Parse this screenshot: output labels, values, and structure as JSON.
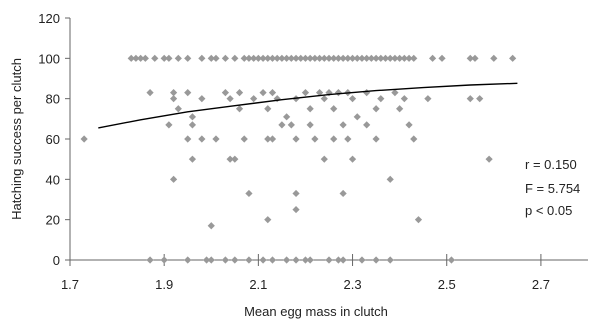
{
  "chart_data": {
    "type": "scatter",
    "xlabel": "Mean egg mass in clutch",
    "ylabel": "Hatching success per clutch",
    "xlim": [
      1.7,
      2.8
    ],
    "ylim": [
      0,
      120
    ],
    "xticks": [
      "1.7",
      "1.9",
      "2.1",
      "2.3",
      "2.5",
      "2.7"
    ],
    "yticks": [
      "0",
      "20",
      "40",
      "60",
      "80",
      "100",
      "120"
    ],
    "grid": false,
    "marker_color": "#999999",
    "trend_color": "#000000",
    "annotations": [
      "r = 0.150",
      "F = 5.754",
      "p < 0.05"
    ],
    "trendline": {
      "x": [
        1.76,
        1.85,
        1.95,
        2.05,
        2.15,
        2.25,
        2.35,
        2.45,
        2.55,
        2.65
      ],
      "y": [
        65.5,
        69.5,
        73.5,
        76.5,
        79.5,
        82,
        84,
        85.5,
        86.8,
        87.6
      ]
    },
    "points": [
      [
        1.73,
        60
      ],
      [
        1.83,
        100
      ],
      [
        1.84,
        100
      ],
      [
        1.85,
        100
      ],
      [
        1.86,
        100
      ],
      [
        1.88,
        100
      ],
      [
        1.9,
        100
      ],
      [
        1.91,
        100
      ],
      [
        1.93,
        100
      ],
      [
        1.95,
        100
      ],
      [
        1.98,
        100
      ],
      [
        2.0,
        100
      ],
      [
        2.01,
        100
      ],
      [
        2.03,
        100
      ],
      [
        2.05,
        100
      ],
      [
        2.07,
        100
      ],
      [
        2.08,
        100
      ],
      [
        2.09,
        100
      ],
      [
        2.1,
        100
      ],
      [
        2.11,
        100
      ],
      [
        2.12,
        100
      ],
      [
        2.13,
        100
      ],
      [
        2.14,
        100
      ],
      [
        2.15,
        100
      ],
      [
        2.16,
        100
      ],
      [
        2.17,
        100
      ],
      [
        2.18,
        100
      ],
      [
        2.19,
        100
      ],
      [
        2.2,
        100
      ],
      [
        2.21,
        100
      ],
      [
        2.22,
        100
      ],
      [
        2.23,
        100
      ],
      [
        2.24,
        100
      ],
      [
        2.25,
        100
      ],
      [
        2.26,
        100
      ],
      [
        2.27,
        100
      ],
      [
        2.28,
        100
      ],
      [
        2.29,
        100
      ],
      [
        2.3,
        100
      ],
      [
        2.31,
        100
      ],
      [
        2.32,
        100
      ],
      [
        2.33,
        100
      ],
      [
        2.34,
        100
      ],
      [
        2.35,
        100
      ],
      [
        2.36,
        100
      ],
      [
        2.37,
        100
      ],
      [
        2.38,
        100
      ],
      [
        2.39,
        100
      ],
      [
        2.4,
        100
      ],
      [
        2.41,
        100
      ],
      [
        2.42,
        100
      ],
      [
        2.43,
        100
      ],
      [
        2.47,
        100
      ],
      [
        2.49,
        100
      ],
      [
        2.55,
        100
      ],
      [
        2.56,
        100
      ],
      [
        2.6,
        100
      ],
      [
        2.64,
        100
      ],
      [
        1.87,
        83
      ],
      [
        1.92,
        83
      ],
      [
        1.95,
        83
      ],
      [
        2.03,
        83
      ],
      [
        2.06,
        83
      ],
      [
        2.11,
        83
      ],
      [
        2.13,
        83
      ],
      [
        2.2,
        83
      ],
      [
        2.23,
        83
      ],
      [
        2.25,
        83
      ],
      [
        2.27,
        83
      ],
      [
        2.29,
        83
      ],
      [
        2.33,
        83
      ],
      [
        2.39,
        83
      ],
      [
        1.92,
        80
      ],
      [
        1.98,
        80
      ],
      [
        2.04,
        80
      ],
      [
        2.09,
        80
      ],
      [
        2.14,
        80
      ],
      [
        2.18,
        80
      ],
      [
        2.24,
        80
      ],
      [
        2.3,
        80
      ],
      [
        2.36,
        80
      ],
      [
        2.41,
        80
      ],
      [
        2.46,
        80
      ],
      [
        2.55,
        80
      ],
      [
        2.57,
        80
      ],
      [
        1.93,
        75
      ],
      [
        2.06,
        75
      ],
      [
        2.12,
        75
      ],
      [
        2.21,
        75
      ],
      [
        2.26,
        75
      ],
      [
        2.35,
        75
      ],
      [
        2.4,
        75
      ],
      [
        1.96,
        71
      ],
      [
        2.16,
        71
      ],
      [
        2.31,
        71
      ],
      [
        1.91,
        67
      ],
      [
        1.96,
        67
      ],
      [
        2.15,
        67
      ],
      [
        2.17,
        67
      ],
      [
        2.21,
        67
      ],
      [
        2.28,
        67
      ],
      [
        2.33,
        67
      ],
      [
        2.42,
        67
      ],
      [
        1.95,
        60
      ],
      [
        1.98,
        60
      ],
      [
        2.01,
        60
      ],
      [
        2.07,
        60
      ],
      [
        2.12,
        60
      ],
      [
        2.13,
        60
      ],
      [
        2.18,
        60
      ],
      [
        2.22,
        60
      ],
      [
        2.26,
        60
      ],
      [
        2.29,
        60
      ],
      [
        2.35,
        60
      ],
      [
        2.43,
        60
      ],
      [
        1.96,
        50
      ],
      [
        2.04,
        50
      ],
      [
        2.05,
        50
      ],
      [
        2.24,
        50
      ],
      [
        2.3,
        50
      ],
      [
        2.59,
        50
      ],
      [
        1.92,
        40
      ],
      [
        2.38,
        40
      ],
      [
        2.08,
        33
      ],
      [
        2.18,
        33
      ],
      [
        2.28,
        33
      ],
      [
        2.18,
        25
      ],
      [
        2.12,
        20
      ],
      [
        2.44,
        20
      ],
      [
        2.0,
        17
      ],
      [
        1.87,
        0
      ],
      [
        1.9,
        0
      ],
      [
        1.95,
        0
      ],
      [
        1.99,
        0
      ],
      [
        2.0,
        0
      ],
      [
        2.03,
        0
      ],
      [
        2.05,
        0
      ],
      [
        2.08,
        0
      ],
      [
        2.11,
        0
      ],
      [
        2.13,
        0
      ],
      [
        2.16,
        0
      ],
      [
        2.18,
        0
      ],
      [
        2.2,
        0
      ],
      [
        2.21,
        0
      ],
      [
        2.25,
        0
      ],
      [
        2.27,
        0
      ],
      [
        2.28,
        0
      ],
      [
        2.32,
        0
      ],
      [
        2.35,
        0
      ],
      [
        2.38,
        0
      ],
      [
        2.51,
        0
      ]
    ]
  }
}
